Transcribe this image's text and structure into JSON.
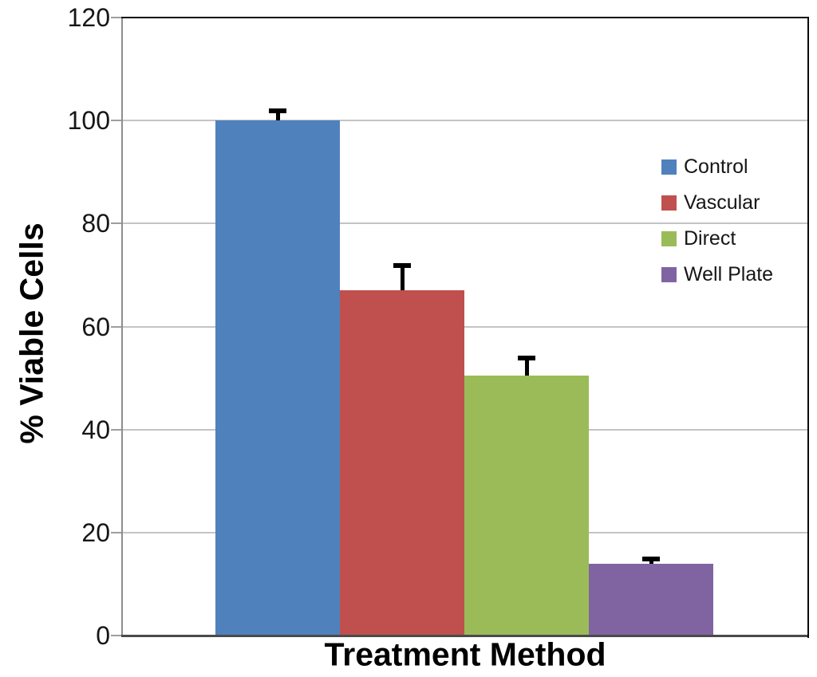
{
  "chart_data": {
    "type": "bar",
    "title": "",
    "xlabel": "Treatment Method",
    "ylabel": "% Viable Cells",
    "series": [
      {
        "name": "Control",
        "value": 100,
        "error_plus": 2,
        "color": "#4F81BD"
      },
      {
        "name": "Vascular",
        "value": 67,
        "error_plus": 5,
        "color": "#C0504D"
      },
      {
        "name": "Direct",
        "value": 50.5,
        "error_plus": 3.5,
        "color": "#9BBB59"
      },
      {
        "name": "Well Plate",
        "value": 14,
        "error_plus": 1,
        "color": "#8064A2"
      }
    ],
    "yticks": [
      0,
      20,
      40,
      60,
      80,
      100,
      120
    ],
    "ylim": [
      0,
      120
    ],
    "grid": true,
    "error_bars": "upper-only",
    "legend_position": "inside-right",
    "bars_touching": true
  },
  "colors": {
    "background": "#FFFFFF",
    "gridline": "#C4C4C4",
    "tick": "#9E9E9E",
    "left_axis": "#8E8E8E",
    "bottom_axis": "#4A4A4A",
    "plot_border": "#0A0A0A",
    "error_bar": "#000000",
    "text": "#161616"
  }
}
